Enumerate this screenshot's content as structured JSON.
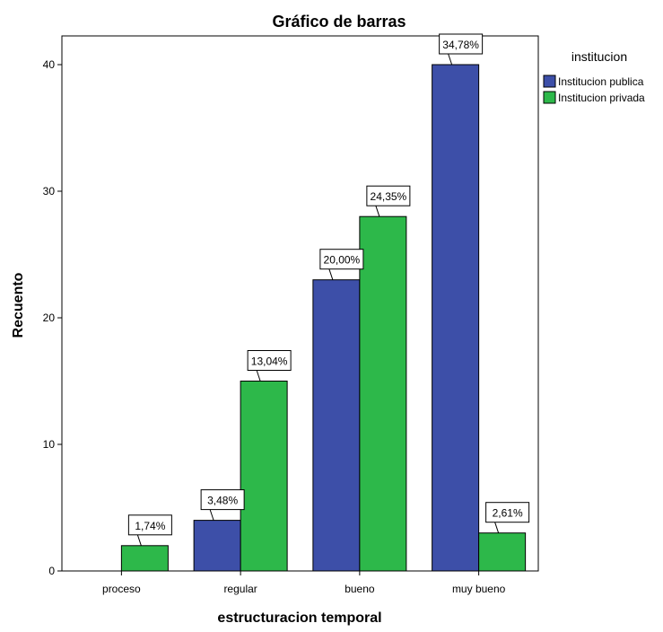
{
  "chart_data": {
    "type": "bar",
    "title": "Gráfico de barras",
    "xlabel": "estructuracion temporal",
    "ylabel": "Recuento",
    "categories": [
      "proceso",
      "regular",
      "bueno",
      "muy bueno"
    ],
    "ylim": [
      0,
      45
    ],
    "yticks": [
      0,
      10,
      20,
      30,
      40
    ],
    "grid": false,
    "legend": {
      "title": "institucion",
      "placement": "right"
    },
    "series": [
      {
        "name": "Institucion publica",
        "color": "#3d4fa8",
        "values": [
          0,
          4,
          23,
          40
        ],
        "labels": [
          "",
          "3,48%",
          "20,00%",
          "34,78%"
        ]
      },
      {
        "name": "Institucion privada",
        "color": "#2db84a",
        "values": [
          2,
          15,
          28,
          3
        ],
        "labels": [
          "1,74%",
          "13,04%",
          "24,35%",
          "2,61%"
        ]
      }
    ]
  }
}
